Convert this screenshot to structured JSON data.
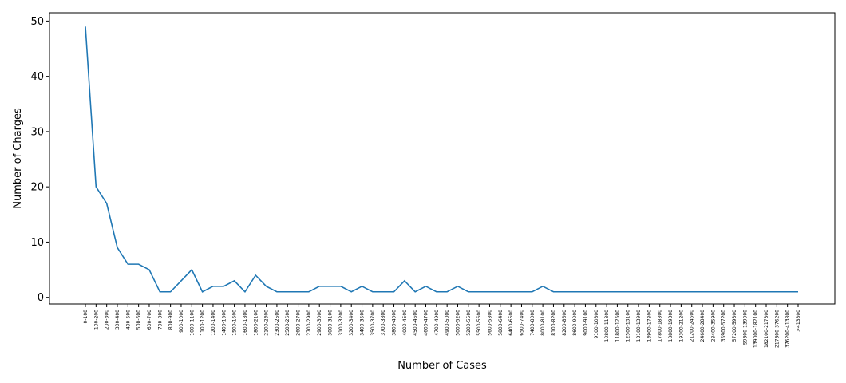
{
  "chart_data": {
    "type": "line",
    "title": "",
    "xlabel": "Number of Cases",
    "ylabel": "Number of Charges",
    "ylim": [
      -1.2,
      51.5
    ],
    "yticks": [
      0,
      10,
      20,
      30,
      40,
      50
    ],
    "grid": false,
    "legend": "none",
    "colors": {
      "line": "#1f77b4",
      "axes": "#000000"
    },
    "categories": [
      "0-100",
      "100-200",
      "200-300",
      "300-400",
      "400-500",
      "500-600",
      "600-700",
      "700-800",
      "800-900",
      "900-1000",
      "1000-1100",
      "1100-1200",
      "1200-1400",
      "1400-1500",
      "1500-1600",
      "1600-1800",
      "1800-2100",
      "2100-2300",
      "2300-2500",
      "2500-2600",
      "2600-2700",
      "2700-2900",
      "2900-3000",
      "3000-3100",
      "3100-3200",
      "3200-3400",
      "3400-3500",
      "3500-3700",
      "3700-3800",
      "3800-4000",
      "4000-4500",
      "4500-4600",
      "4600-4700",
      "4700-4900",
      "4900-5000",
      "5000-5200",
      "5200-5500",
      "5500-5600",
      "5600-5800",
      "5800-6400",
      "6400-6500",
      "6500-7400",
      "7400-8000",
      "8000-8100",
      "8100-8200",
      "8200-8600",
      "8600-9000",
      "9000-9100",
      "9100-10800",
      "10800-11800",
      "11800-12500",
      "12500-13100",
      "13100-13900",
      "13900-17800",
      "17800-18800",
      "18800-19300",
      "19300-21200",
      "21200-24600",
      "24600-28400",
      "28400-35900",
      "35900-57200",
      "57200-59300",
      "59300-139000",
      "139000-182100",
      "182100-217300",
      "217300-376200",
      "376200-413800",
      ">413800"
    ],
    "values": [
      49,
      20,
      17,
      9,
      6,
      6,
      5,
      1,
      1,
      3,
      5,
      1,
      2,
      2,
      3,
      1,
      4,
      2,
      1,
      1,
      1,
      1,
      2,
      2,
      2,
      1,
      2,
      1,
      1,
      1,
      3,
      1,
      2,
      1,
      1,
      2,
      1,
      1,
      1,
      1,
      1,
      1,
      1,
      2,
      1,
      1,
      1,
      1,
      1,
      1,
      1,
      1,
      1,
      1,
      1,
      1,
      1,
      1,
      1,
      1,
      1,
      1,
      1,
      1,
      1,
      1,
      1,
      1
    ]
  }
}
